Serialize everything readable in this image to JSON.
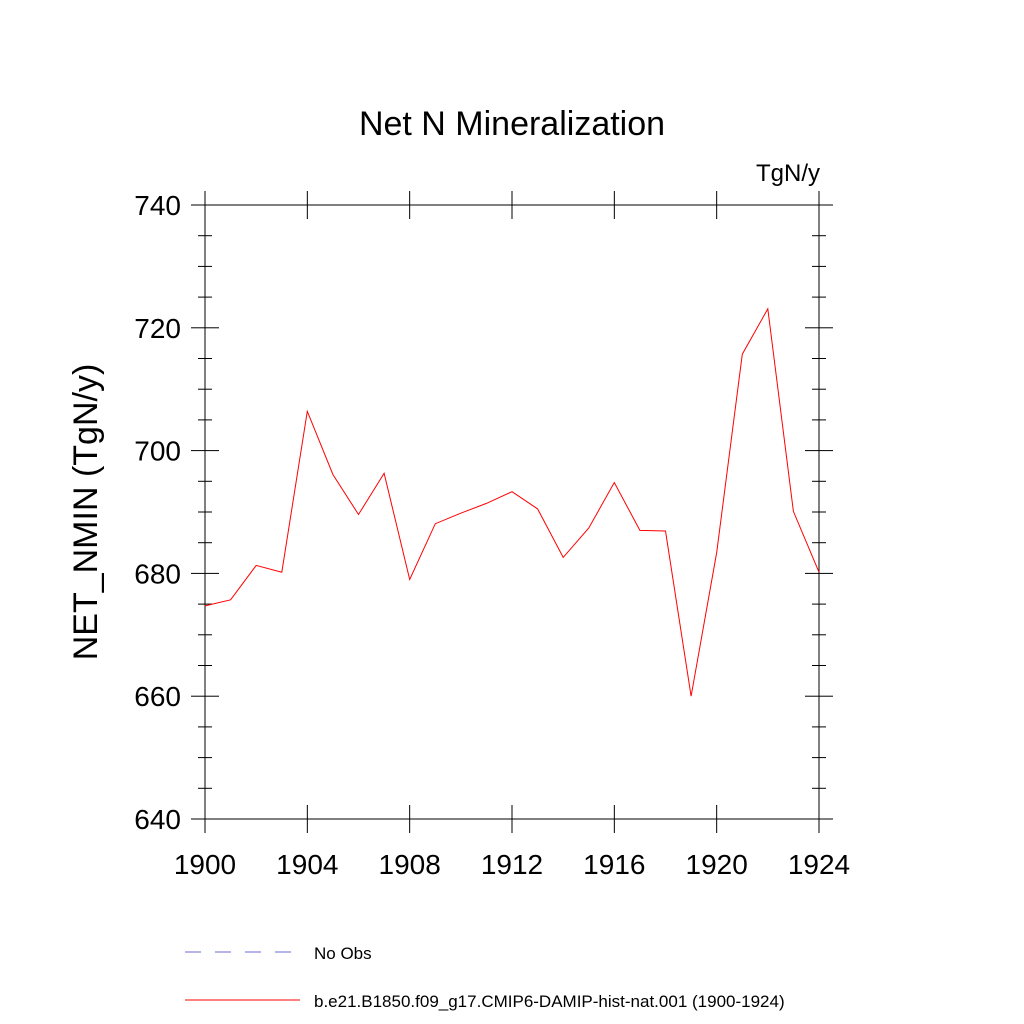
{
  "chart_data": {
    "type": "line",
    "title": "Net N Mineralization",
    "units": "TgN/y",
    "xlabel": "",
    "ylabel": "NET_NMIN  (TgN/y)",
    "xlim": [
      1900,
      1924
    ],
    "ylim": [
      640,
      740
    ],
    "x_ticks": [
      1900,
      1904,
      1908,
      1912,
      1916,
      1920,
      1924
    ],
    "y_ticks": [
      640,
      660,
      680,
      700,
      720,
      740
    ],
    "grid": false,
    "legend_position": "bottom",
    "series": [
      {
        "name": "No Obs",
        "color": "#6b6bd6",
        "style": "dashed",
        "x": [],
        "y": []
      },
      {
        "name": "b.e21.B1850.f09_g17.CMIP6-DAMIP-hist-nat.001 (1900-1924)",
        "color": "#ff0000",
        "style": "solid",
        "x": [
          1900,
          1901,
          1902,
          1903,
          1904,
          1905,
          1906,
          1907,
          1908,
          1909,
          1910,
          1911,
          1912,
          1913,
          1914,
          1915,
          1916,
          1917,
          1918,
          1919,
          1920,
          1921,
          1922,
          1923,
          1924
        ],
        "y": [
          674.7,
          675.7,
          681.3,
          680.2,
          706.4,
          696.1,
          689.6,
          696.3,
          679.0,
          688.1,
          689.8,
          691.4,
          693.3,
          690.5,
          682.6,
          687.4,
          694.8,
          687.0,
          686.9,
          660.0,
          683.4,
          715.7,
          723.1,
          690.1,
          680.2
        ]
      }
    ]
  }
}
